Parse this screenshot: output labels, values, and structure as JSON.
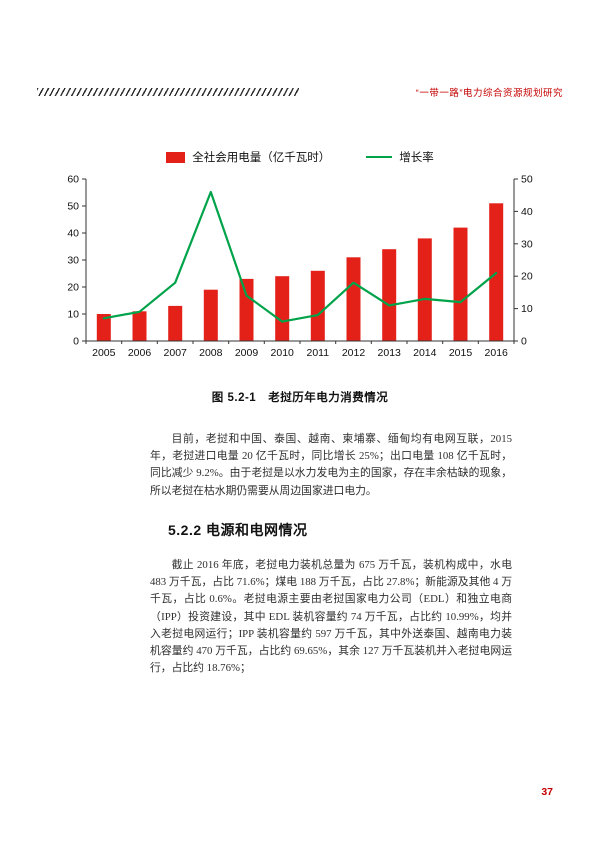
{
  "header": {
    "title": "“一带一路”电力综合资源规划研究"
  },
  "figure": {
    "caption": "图 5.2-1　老挝历年电力消费情况"
  },
  "chart_data": {
    "type": "combo",
    "title": "图 5.2-1 老挝历年电力消费情况",
    "categories": [
      "2005",
      "2006",
      "2007",
      "2008",
      "2009",
      "2010",
      "2011",
      "2012",
      "2013",
      "2014",
      "2015",
      "2016"
    ],
    "series": [
      {
        "name": "全社会用电量（亿千瓦时）",
        "type": "bar",
        "axis": "left",
        "color": "#e32119",
        "values": [
          10,
          11,
          13,
          19,
          23,
          24,
          26,
          31,
          34,
          38,
          42,
          51
        ]
      },
      {
        "name": "增长率",
        "type": "line",
        "axis": "right",
        "color": "#00a34a",
        "values": [
          7,
          9,
          18,
          46,
          14,
          6,
          8,
          18,
          11,
          13,
          12,
          21
        ]
      }
    ],
    "left_axis": {
      "min": 0,
      "max": 60,
      "step": 10
    },
    "right_axis": {
      "min": 0,
      "max": 50,
      "step": 10
    },
    "grid": false,
    "legend_position": "top"
  },
  "paragraphs": [
    "目前，老挝和中国、泰国、越南、柬埔寨、缅甸均有电网互联，2015 年，老挝进口电量 20 亿千瓦时，同比增长 25%；出口电量 108 亿千瓦时，同比减少 9.2%。由于老挝是以水力发电为主的国家，存在丰余枯缺的现象，所以老挝在枯水期仍需要从周边国家进口电力。",
    "截止 2016 年底，老挝电力装机总量为 675 万千瓦，装机构成中，水电 483 万千瓦，占比 71.6%；煤电 188 万千瓦，占比 27.8%；新能源及其他 4 万千瓦，占比 0.6%。老挝电源主要由老挝国家电力公司（EDL）和独立电商（IPP）投资建设，其中 EDL 装机容量约 74 万千瓦，占比约 10.99%，均并入老挝电网运行；IPP 装机容量约 597 万千瓦，其中外送泰国、越南电力装机容量约 470 万千瓦，占比约 69.65%，其余 127 万千瓦装机并入老挝电网运行，占比约 18.76%；"
  ],
  "section": {
    "heading": "5.2.2 电源和电网情况"
  },
  "footer": {
    "page_number": "37"
  }
}
